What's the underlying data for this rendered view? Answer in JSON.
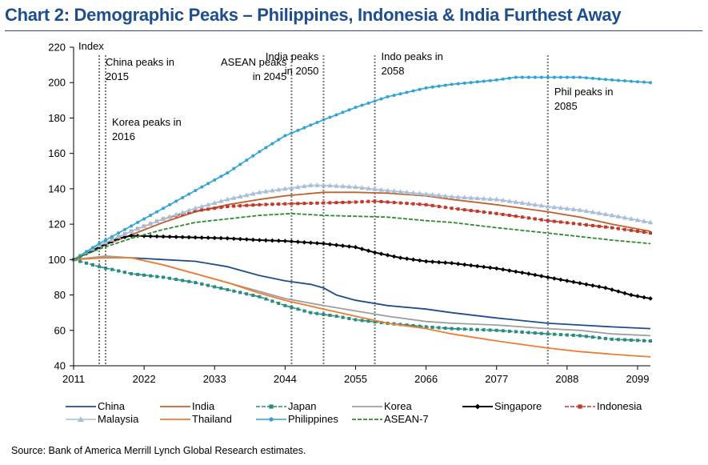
{
  "chart_title": "Chart 2: Demographic Peaks – Philippines, Indonesia & India Furthest Away",
  "source": "Source: Bank of America Merrill Lynch Global Research estimates.",
  "chart_data": {
    "type": "line",
    "title": "Chart 2: Demographic Peaks – Philippines, Indonesia & India Furthest Away",
    "xlabel": "",
    "ylabel": "Index",
    "xlim": [
      2011,
      2101
    ],
    "ylim": [
      40,
      220
    ],
    "y_ticks": [
      40,
      60,
      80,
      100,
      120,
      140,
      160,
      180,
      200,
      220
    ],
    "x_ticks": [
      2011,
      2022,
      2033,
      2044,
      2055,
      2066,
      2077,
      2088,
      2099
    ],
    "grid": false,
    "legend_position": "bottom",
    "annotations": [
      {
        "year": 2015,
        "text": [
          "China peaks in",
          "2015"
        ],
        "anchor": "start",
        "row": 1
      },
      {
        "year": 2016,
        "text": [
          "Korea peaks in",
          "2016"
        ],
        "anchor": "start",
        "row": 2
      },
      {
        "year": 2045,
        "text": [
          "ASEAN peaks",
          "in 2045"
        ],
        "anchor": "end",
        "row": 1
      },
      {
        "year": 2050,
        "text": [
          "India peaks",
          "in 2050"
        ],
        "anchor": "end",
        "row": 0
      },
      {
        "year": 2058,
        "text": [
          "Indo peaks in",
          "2058"
        ],
        "anchor": "start",
        "row": 0
      },
      {
        "year": 2085,
        "text": [
          "Phil peaks in",
          "2085"
        ],
        "anchor": "start",
        "row": 3
      }
    ],
    "series": [
      {
        "name": "China",
        "color": "#1f4e8c",
        "marker": "none",
        "width": 1.8,
        "points": [
          [
            2011,
            100
          ],
          [
            2015,
            101
          ],
          [
            2020,
            101
          ],
          [
            2025,
            100
          ],
          [
            2030,
            99
          ],
          [
            2035,
            96
          ],
          [
            2040,
            91
          ],
          [
            2044,
            88
          ],
          [
            2048,
            86
          ],
          [
            2050,
            84
          ],
          [
            2052,
            80
          ],
          [
            2055,
            77
          ],
          [
            2060,
            74
          ],
          [
            2066,
            72
          ],
          [
            2070,
            70
          ],
          [
            2077,
            67
          ],
          [
            2085,
            64
          ],
          [
            2090,
            63
          ],
          [
            2095,
            62
          ],
          [
            2101,
            61
          ]
        ]
      },
      {
        "name": "India",
        "color": "#c0622b",
        "marker": "none",
        "width": 1.8,
        "points": [
          [
            2011,
            100
          ],
          [
            2015,
            107
          ],
          [
            2020,
            114
          ],
          [
            2025,
            121
          ],
          [
            2030,
            127
          ],
          [
            2035,
            131
          ],
          [
            2040,
            134
          ],
          [
            2044,
            136
          ],
          [
            2050,
            138
          ],
          [
            2055,
            138
          ],
          [
            2060,
            137.5
          ],
          [
            2066,
            136
          ],
          [
            2070,
            134
          ],
          [
            2077,
            131
          ],
          [
            2085,
            127
          ],
          [
            2090,
            124
          ],
          [
            2095,
            120
          ],
          [
            2101,
            116
          ]
        ]
      },
      {
        "name": "Japan",
        "color": "#2a8b80",
        "marker": "square",
        "width": 1.6,
        "dashed": true,
        "points": [
          [
            2011,
            100
          ],
          [
            2015,
            96
          ],
          [
            2020,
            92
          ],
          [
            2025,
            90
          ],
          [
            2030,
            87
          ],
          [
            2035,
            83
          ],
          [
            2040,
            79
          ],
          [
            2044,
            74
          ],
          [
            2048,
            70
          ],
          [
            2052,
            68
          ],
          [
            2055,
            66
          ],
          [
            2060,
            64
          ],
          [
            2066,
            62
          ],
          [
            2070,
            61
          ],
          [
            2077,
            60
          ],
          [
            2085,
            58
          ],
          [
            2090,
            57
          ],
          [
            2095,
            55
          ],
          [
            2101,
            54
          ]
        ]
      },
      {
        "name": "Korea",
        "color": "#9e9e9e",
        "marker": "none",
        "width": 1.8,
        "points": [
          [
            2011,
            100
          ],
          [
            2016,
            102
          ],
          [
            2020,
            101
          ],
          [
            2025,
            97
          ],
          [
            2030,
            92
          ],
          [
            2035,
            87
          ],
          [
            2040,
            82
          ],
          [
            2044,
            78
          ],
          [
            2050,
            74
          ],
          [
            2055,
            71
          ],
          [
            2060,
            68
          ],
          [
            2066,
            65
          ],
          [
            2070,
            64
          ],
          [
            2077,
            63
          ],
          [
            2085,
            61
          ],
          [
            2090,
            60
          ],
          [
            2095,
            58
          ],
          [
            2101,
            57
          ]
        ]
      },
      {
        "name": "Singapore",
        "color": "#000000",
        "marker": "diamond",
        "width": 2,
        "points": [
          [
            2011,
            100
          ],
          [
            2015,
            107
          ],
          [
            2018,
            112
          ],
          [
            2020,
            113.5
          ],
          [
            2025,
            113
          ],
          [
            2030,
            112.5
          ],
          [
            2035,
            112
          ],
          [
            2040,
            111
          ],
          [
            2044,
            110.5
          ],
          [
            2050,
            109
          ],
          [
            2055,
            107
          ],
          [
            2058,
            104
          ],
          [
            2062,
            101
          ],
          [
            2066,
            99
          ],
          [
            2070,
            98
          ],
          [
            2077,
            95
          ],
          [
            2082,
            92
          ],
          [
            2088,
            88
          ],
          [
            2094,
            84
          ],
          [
            2098,
            80
          ],
          [
            2101,
            78
          ]
        ]
      },
      {
        "name": "Indonesia",
        "color": "#c0392b",
        "marker": "square",
        "width": 1.6,
        "dashed": true,
        "points": [
          [
            2011,
            100
          ],
          [
            2015,
            108
          ],
          [
            2020,
            116
          ],
          [
            2025,
            123
          ],
          [
            2030,
            127.5
          ],
          [
            2035,
            130
          ],
          [
            2040,
            131
          ],
          [
            2044,
            131.5
          ],
          [
            2050,
            132
          ],
          [
            2055,
            132.5
          ],
          [
            2058,
            133
          ],
          [
            2062,
            132
          ],
          [
            2066,
            131
          ],
          [
            2070,
            129
          ],
          [
            2077,
            126
          ],
          [
            2085,
            122
          ],
          [
            2090,
            120
          ],
          [
            2095,
            118
          ],
          [
            2101,
            115
          ]
        ]
      },
      {
        "name": "Malaysia",
        "color": "#a9bfd9",
        "marker": "triangle",
        "width": 1.6,
        "points": [
          [
            2011,
            100
          ],
          [
            2015,
            108
          ],
          [
            2020,
            116
          ],
          [
            2025,
            123
          ],
          [
            2030,
            129
          ],
          [
            2035,
            134
          ],
          [
            2040,
            138
          ],
          [
            2044,
            140
          ],
          [
            2048,
            142
          ],
          [
            2050,
            142
          ],
          [
            2055,
            141
          ],
          [
            2060,
            139
          ],
          [
            2066,
            137
          ],
          [
            2070,
            135.5
          ],
          [
            2077,
            134
          ],
          [
            2085,
            130
          ],
          [
            2090,
            128
          ],
          [
            2095,
            125
          ],
          [
            2101,
            121
          ]
        ]
      },
      {
        "name": "Thailand",
        "color": "#ed7d31",
        "marker": "none",
        "width": 1.8,
        "points": [
          [
            2011,
            100
          ],
          [
            2016,
            101
          ],
          [
            2020,
            101
          ],
          [
            2025,
            97
          ],
          [
            2030,
            92
          ],
          [
            2035,
            87
          ],
          [
            2040,
            81
          ],
          [
            2044,
            77
          ],
          [
            2050,
            72
          ],
          [
            2055,
            68
          ],
          [
            2060,
            64
          ],
          [
            2066,
            61
          ],
          [
            2070,
            58
          ],
          [
            2077,
            54
          ],
          [
            2085,
            50
          ],
          [
            2090,
            48
          ],
          [
            2095,
            46.5
          ],
          [
            2101,
            45
          ]
        ]
      },
      {
        "name": "Philippines",
        "color": "#2ea3d6",
        "marker": "circle",
        "width": 1.6,
        "points": [
          [
            2011,
            100
          ],
          [
            2015,
            109
          ],
          [
            2020,
            119
          ],
          [
            2025,
            129
          ],
          [
            2030,
            139
          ],
          [
            2035,
            149
          ],
          [
            2040,
            161
          ],
          [
            2044,
            170
          ],
          [
            2050,
            179
          ],
          [
            2055,
            186
          ],
          [
            2060,
            192
          ],
          [
            2066,
            197
          ],
          [
            2070,
            199
          ],
          [
            2077,
            201.5
          ],
          [
            2080,
            203
          ],
          [
            2085,
            203
          ],
          [
            2090,
            203
          ],
          [
            2095,
            201.5
          ],
          [
            2101,
            200
          ]
        ]
      },
      {
        "name": "ASEAN-7",
        "color": "#2e8b2e",
        "marker": "none",
        "width": 1.8,
        "dashed": true,
        "points": [
          [
            2011,
            100
          ],
          [
            2015,
            106
          ],
          [
            2020,
            112
          ],
          [
            2025,
            117
          ],
          [
            2030,
            121
          ],
          [
            2035,
            123
          ],
          [
            2040,
            125
          ],
          [
            2045,
            126
          ],
          [
            2050,
            125
          ],
          [
            2055,
            124.5
          ],
          [
            2060,
            124
          ],
          [
            2066,
            122
          ],
          [
            2070,
            121
          ],
          [
            2077,
            118
          ],
          [
            2085,
            115
          ],
          [
            2090,
            113
          ],
          [
            2095,
            111
          ],
          [
            2101,
            109
          ]
        ]
      }
    ]
  }
}
